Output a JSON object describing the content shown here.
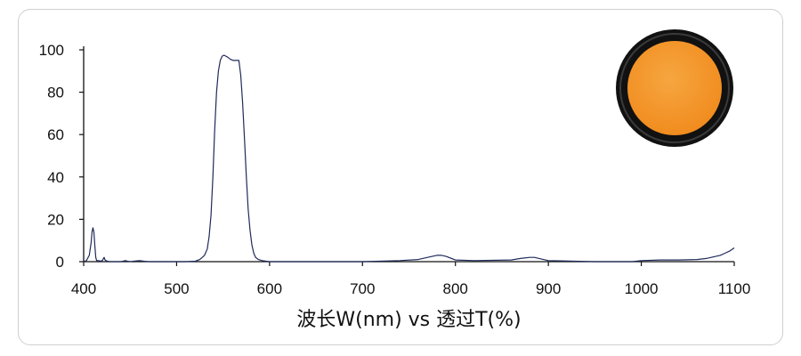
{
  "chart_data": {
    "type": "line",
    "title": "",
    "xlabel": "波长W(nm) vs 透过T(%)",
    "ylabel": "",
    "xlim": [
      400,
      1100
    ],
    "ylim": [
      0,
      100
    ],
    "x_ticks": [
      400,
      500,
      600,
      700,
      800,
      900,
      1000,
      1100
    ],
    "y_ticks": [
      0,
      20,
      40,
      60,
      80,
      100
    ],
    "grid": false,
    "legend": "none",
    "line_color": "#1f2a5a",
    "filter_colors": {
      "ring": "#111111",
      "glass": "#f08a1c",
      "glass_light": "#f6a640"
    },
    "series": [
      {
        "x": [
          400,
          403,
          406,
          408,
          409,
          410,
          411,
          412,
          413,
          414,
          416,
          418,
          420,
          422,
          423,
          425,
          428,
          440,
          445,
          447,
          450,
          455,
          460,
          465,
          470,
          490,
          500,
          510,
          520,
          525,
          530,
          533,
          535,
          537,
          539,
          541,
          543,
          545,
          547,
          549,
          551,
          553,
          555,
          558,
          561,
          564,
          567,
          569,
          571,
          573,
          575,
          577,
          579,
          581,
          583,
          585,
          588,
          592,
          600,
          620,
          700,
          740,
          760,
          770,
          780,
          785,
          790,
          800,
          820,
          860,
          870,
          880,
          885,
          890,
          900,
          950,
          990,
          1000,
          1020,
          1040,
          1060,
          1070,
          1080,
          1085,
          1090,
          1095,
          1100
        ],
        "y": [
          0,
          0.5,
          3,
          9,
          14,
          16,
          14,
          8,
          2,
          0.5,
          0.5,
          0.3,
          0.5,
          2,
          0.8,
          0.3,
          0,
          0,
          0.5,
          0.2,
          0,
          0.3,
          0.5,
          0.2,
          0,
          0,
          0,
          0,
          0.2,
          1,
          3,
          6,
          12,
          22,
          40,
          62,
          80,
          90,
          95,
          97,
          97.5,
          97,
          96.5,
          95.5,
          95,
          95,
          95,
          88,
          75,
          58,
          40,
          25,
          15,
          8,
          4,
          2,
          1,
          0.5,
          0,
          0,
          0,
          0.5,
          1,
          2,
          3,
          3,
          2.5,
          0.8,
          0.5,
          0.8,
          1.5,
          2,
          2,
          1.5,
          0.5,
          0,
          0,
          0.5,
          0.8,
          0.8,
          1,
          1.5,
          2.5,
          3,
          4,
          5,
          6.5
        ]
      }
    ]
  }
}
